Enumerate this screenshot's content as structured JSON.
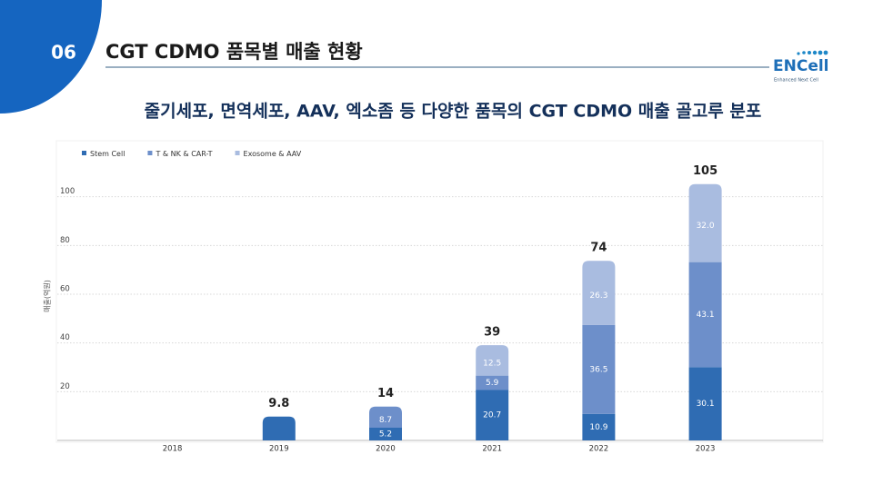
{
  "header": {
    "number": "06",
    "title": "CGT CDMO 품목별 매출 현황",
    "logo": "ENCell",
    "logo_tagline": "Enhanced Next Cell"
  },
  "chart_data": {
    "type": "stacked-bar",
    "title": "줄기세포, 면역세포, AAV, 엑소좀 등 다양한 품목의 CGT CDMO 매출 골고루 분포",
    "y_label": "매출(억원)",
    "categories": [
      "2018",
      "2019",
      "2020",
      "2021",
      "2022",
      "2023"
    ],
    "series": [
      {
        "name": "Stem Cell",
        "color": "#2f6cb3",
        "values": [
          null,
          9.8,
          5.2,
          20.7,
          10.9,
          30.1
        ]
      },
      {
        "name": "T & NK & CAR-T",
        "color": "#6d8fca",
        "values": [
          null,
          null,
          8.7,
          5.9,
          36.5,
          43.1
        ]
      },
      {
        "name": "Exosome & AAV",
        "color": "#a9bce0",
        "values": [
          null,
          null,
          null,
          12.5,
          26.3,
          32
        ],
        "value_labels": [
          null,
          null,
          null,
          "12.5",
          "26.3",
          "32.0"
        ]
      }
    ],
    "totals": [
      null,
      9.8,
      14,
      39,
      74,
      105
    ],
    "ylim": [
      0,
      120
    ],
    "yticks": [
      20,
      40,
      60,
      80,
      100
    ],
    "grid": true,
    "legend": "top-left"
  }
}
